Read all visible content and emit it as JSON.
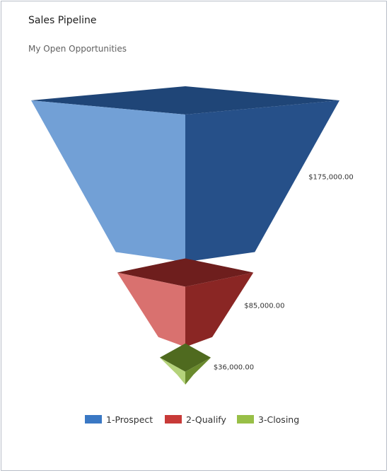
{
  "title": "Sales Pipeline",
  "subtitle": "My Open Opportunities",
  "chart_data": {
    "type": "funnel",
    "categories": [
      "1-Prospect",
      "2-Qualify",
      "3-Closing"
    ],
    "values": [
      175000,
      85000,
      36000
    ],
    "value_labels": [
      "$175,000.00",
      "$85,000.00",
      "$36,000.00"
    ],
    "colors": {
      "1-Prospect": {
        "legend": "#3a78c4",
        "light": "#72a0d6",
        "dark": "#265089",
        "top": "#1f4577"
      },
      "2-Qualify": {
        "legend": "#c83a38",
        "light": "#d9716f",
        "dark": "#8a2624",
        "top": "#6e1e1d"
      },
      "3-Closing": {
        "legend": "#98bf47",
        "light": "#b4d27a",
        "dark": "#6a8a2d",
        "top": "#4f6a1f"
      }
    },
    "legend_position": "bottom",
    "grid": false
  }
}
